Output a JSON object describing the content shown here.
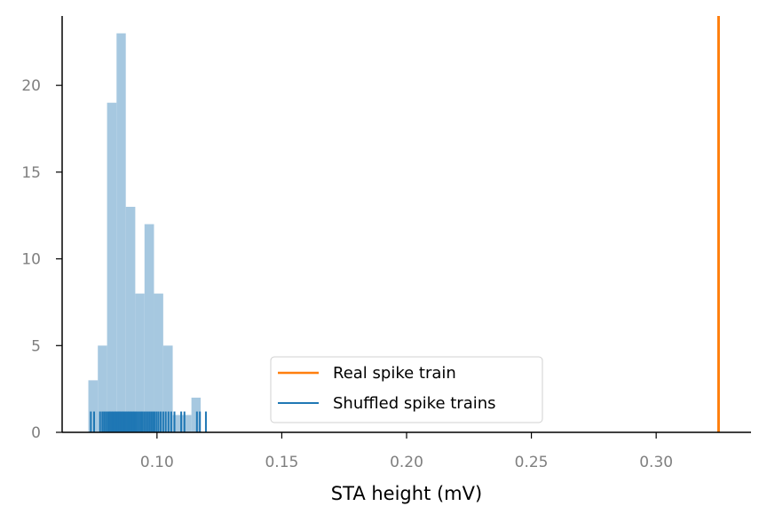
{
  "chart_data": {
    "type": "bar",
    "title": "",
    "xlabel": "STA height (mV)",
    "ylabel": "",
    "xlim": [
      0.062,
      0.338
    ],
    "ylim": [
      0,
      24
    ],
    "xticks": [
      0.1,
      0.15,
      0.2,
      0.25,
      0.3
    ],
    "xtick_labels": [
      "0.10",
      "0.15",
      "0.20",
      "0.25",
      "0.30"
    ],
    "yticks": [
      0,
      5,
      10,
      15,
      20
    ],
    "ytick_labels": [
      "0",
      "5",
      "10",
      "15",
      "20"
    ],
    "grid": false,
    "legend_position": "lower center",
    "histogram": {
      "name": "Shuffled spike trains",
      "color": "#a6c8e0",
      "bin_edges": [
        0.0725,
        0.0763,
        0.08,
        0.0838,
        0.0875,
        0.0913,
        0.095,
        0.0988,
        0.1025,
        0.1063,
        0.11,
        0.1138,
        0.1175,
        0.1213
      ],
      "counts": [
        3,
        5,
        19,
        23,
        13,
        8,
        12,
        8,
        5,
        1,
        1,
        2,
        0
      ]
    },
    "rug": {
      "name": "Shuffled spike trains",
      "color": "#1f77b4",
      "values": [
        0.0735,
        0.0748,
        0.0772,
        0.0781,
        0.0788,
        0.0795,
        0.0802,
        0.0808,
        0.0812,
        0.0818,
        0.0823,
        0.0829,
        0.0834,
        0.0838,
        0.0843,
        0.0847,
        0.0851,
        0.0856,
        0.0861,
        0.0866,
        0.0871,
        0.0876,
        0.0882,
        0.0887,
        0.0893,
        0.0898,
        0.0904,
        0.0909,
        0.0915,
        0.0921,
        0.0928,
        0.0935,
        0.0941,
        0.0948,
        0.0955,
        0.0962,
        0.0969,
        0.0976,
        0.0983,
        0.099,
        0.0998,
        0.1006,
        0.1015,
        0.1025,
        0.1035,
        0.1046,
        0.1057,
        0.107,
        0.1097,
        0.111,
        0.116,
        0.1172,
        0.1196
      ]
    },
    "vline": {
      "name": "Real spike train",
      "color": "#ff7f0e",
      "x": 0.325
    },
    "legend": [
      {
        "label": "Real spike train",
        "color": "#ff7f0e"
      },
      {
        "label": "Shuffled spike trains",
        "color": "#1f77b4"
      }
    ]
  }
}
